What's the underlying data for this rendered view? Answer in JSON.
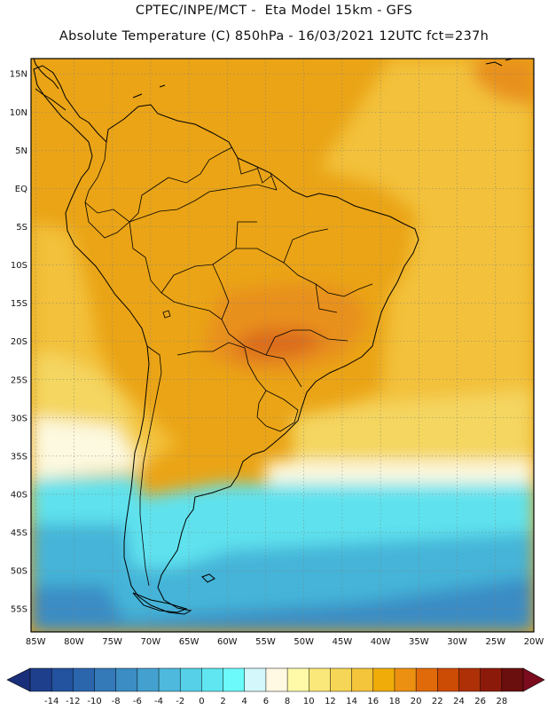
{
  "header": {
    "line1": "CPTEC/INPE/MCT -  Eta Model 15km - GFS",
    "line2": "Absolute Temperature (C) 850hPa - 16/03/2021 12UTC fct=237h"
  },
  "map": {
    "variable": "Absolute Temperature",
    "units": "C",
    "level": "850hPa",
    "lat_range": [
      -58,
      17
    ],
    "lon_range": [
      -85.6,
      -20
    ],
    "lat_labels": [
      {
        "value": 15,
        "label": "15N"
      },
      {
        "value": 10,
        "label": "10N"
      },
      {
        "value": 5,
        "label": "5N"
      },
      {
        "value": 0,
        "label": "EQ"
      },
      {
        "value": -5,
        "label": "5S"
      },
      {
        "value": -10,
        "label": "10S"
      },
      {
        "value": -15,
        "label": "15S"
      },
      {
        "value": -20,
        "label": "20S"
      },
      {
        "value": -25,
        "label": "25S"
      },
      {
        "value": -30,
        "label": "30S"
      },
      {
        "value": -35,
        "label": "35S"
      },
      {
        "value": -40,
        "label": "40S"
      },
      {
        "value": -45,
        "label": "45S"
      },
      {
        "value": -50,
        "label": "50S"
      },
      {
        "value": -55,
        "label": "55S"
      }
    ],
    "lon_labels": [
      {
        "value": -85,
        "label": "85W"
      },
      {
        "value": -80,
        "label": "80W"
      },
      {
        "value": -75,
        "label": "75W"
      },
      {
        "value": -70,
        "label": "70W"
      },
      {
        "value": -65,
        "label": "65W"
      },
      {
        "value": -60,
        "label": "60W"
      },
      {
        "value": -55,
        "label": "55W"
      },
      {
        "value": -50,
        "label": "50W"
      },
      {
        "value": -45,
        "label": "45W"
      },
      {
        "value": -40,
        "label": "40W"
      },
      {
        "value": -35,
        "label": "35W"
      },
      {
        "value": -30,
        "label": "30W"
      },
      {
        "value": -25,
        "label": "25W"
      },
      {
        "value": -20,
        "label": "20W"
      }
    ]
  },
  "colorbar": {
    "ticks": [
      "-14",
      "-12",
      "-10",
      "-8",
      "-6",
      "-4",
      "-2",
      "0",
      "2",
      "4",
      "6",
      "8",
      "10",
      "12",
      "14",
      "16",
      "18",
      "20",
      "22",
      "24",
      "26",
      "28"
    ],
    "colors": [
      "#1e3f8c",
      "#23529e",
      "#2b66ad",
      "#3479b8",
      "#3b8dc3",
      "#44a1cf",
      "#4eb9dc",
      "#56d0e8",
      "#60e6f1",
      "#6cfafa",
      "#d4f7fb",
      "#fff8e3",
      "#fffaa8",
      "#fbe87a",
      "#f6d656",
      "#f4c43b",
      "#f0ad0a",
      "#ec9012",
      "#e06a0a",
      "#cc4c05",
      "#ad3007",
      "#8c1a0b",
      "#6b0e0e"
    ],
    "under_color": "#1a2f7a",
    "over_color": "#7a0c1e"
  },
  "colors": {
    "tropics": "#eaa416",
    "subtropics": "#f3c13a",
    "mid_lat": "#f4d661",
    "pale": "#fdf9e0",
    "cold": "#5fe2ee",
    "colder": "#44b4d8",
    "coldest": "#3a8cc4",
    "hot": "#e8901a",
    "hottest": "#dc6c1c"
  }
}
